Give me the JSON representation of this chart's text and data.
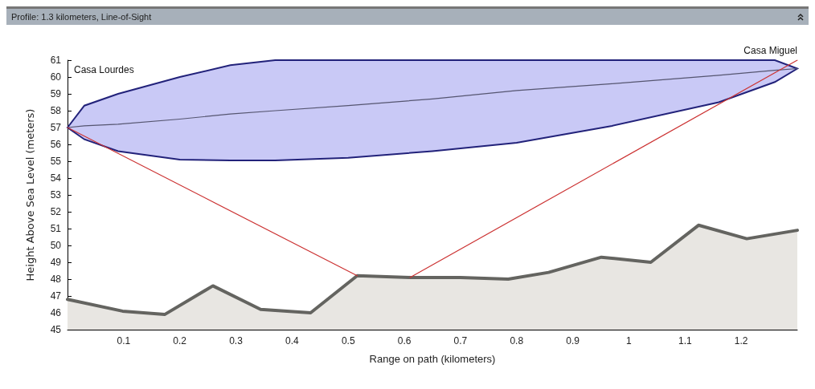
{
  "chart_data": {
    "type": "line",
    "title": "Profile: 1.3 kilometers, Line-of-Sight",
    "xlabel": "Range on path (kilometers)",
    "ylabel": "Height Above Sea Level (meters)",
    "annotations": [
      "Casa Lourdes",
      "Casa Miguel"
    ],
    "xlim": [
      0,
      1.3
    ],
    "xticks": [
      0.1,
      0.2,
      0.3,
      0.4,
      0.5,
      0.6,
      0.7,
      0.8,
      0.9,
      1,
      1.1,
      1.2
    ],
    "ylim": [
      45,
      61
    ],
    "yticks": [
      45,
      46,
      47,
      48,
      49,
      50,
      51,
      52,
      53,
      54,
      55,
      56,
      57,
      58,
      59,
      60,
      61
    ],
    "grid": false,
    "marker": "none",
    "line_style": "solid",
    "series": [
      {
        "type": "area",
        "color": "#646460",
        "x": [
          0,
          0.098,
          0.173,
          0.259,
          0.344,
          0.433,
          0.516,
          0.61,
          0.7,
          0.785,
          0.857,
          0.951,
          1.039,
          1.124,
          1.21,
          1.3
        ],
        "values": [
          46.8,
          46.1,
          45.9,
          47.6,
          46.2,
          46.0,
          48.2,
          48.1,
          48.1,
          48.0,
          48.4,
          49.3,
          49.0,
          51.2,
          50.4,
          50.9
        ]
      },
      {
        "color": "#555570",
        "x": [
          0,
          0.03,
          0.09,
          0.2,
          0.29,
          0.37,
          0.5,
          0.65,
          0.8,
          0.97,
          1.16,
          1.26,
          1.3
        ],
        "values": [
          57,
          57.1,
          57.2,
          57.5,
          57.8,
          58.0,
          58.3,
          58.7,
          59.2,
          59.6,
          60.1,
          60.4,
          60.5
        ],
        "lower": [
          57,
          56.3,
          55.6,
          55.1,
          55.05,
          55.05,
          55.2,
          55.6,
          56.1,
          57.1,
          58.5,
          59.7,
          60.5
        ],
        "upper": [
          57,
          58.3,
          59.0,
          60.0,
          60.7,
          61.0,
          61,
          61,
          61,
          61,
          61,
          61,
          60.5
        ]
      },
      {
        "color": "#cc3333",
        "x": [
          0,
          0.516
        ],
        "values": [
          57,
          48.2
        ]
      },
      {
        "color": "#cc3333",
        "x": [
          0.61,
          1.3
        ],
        "values": [
          48.1,
          61
        ]
      }
    ]
  }
}
